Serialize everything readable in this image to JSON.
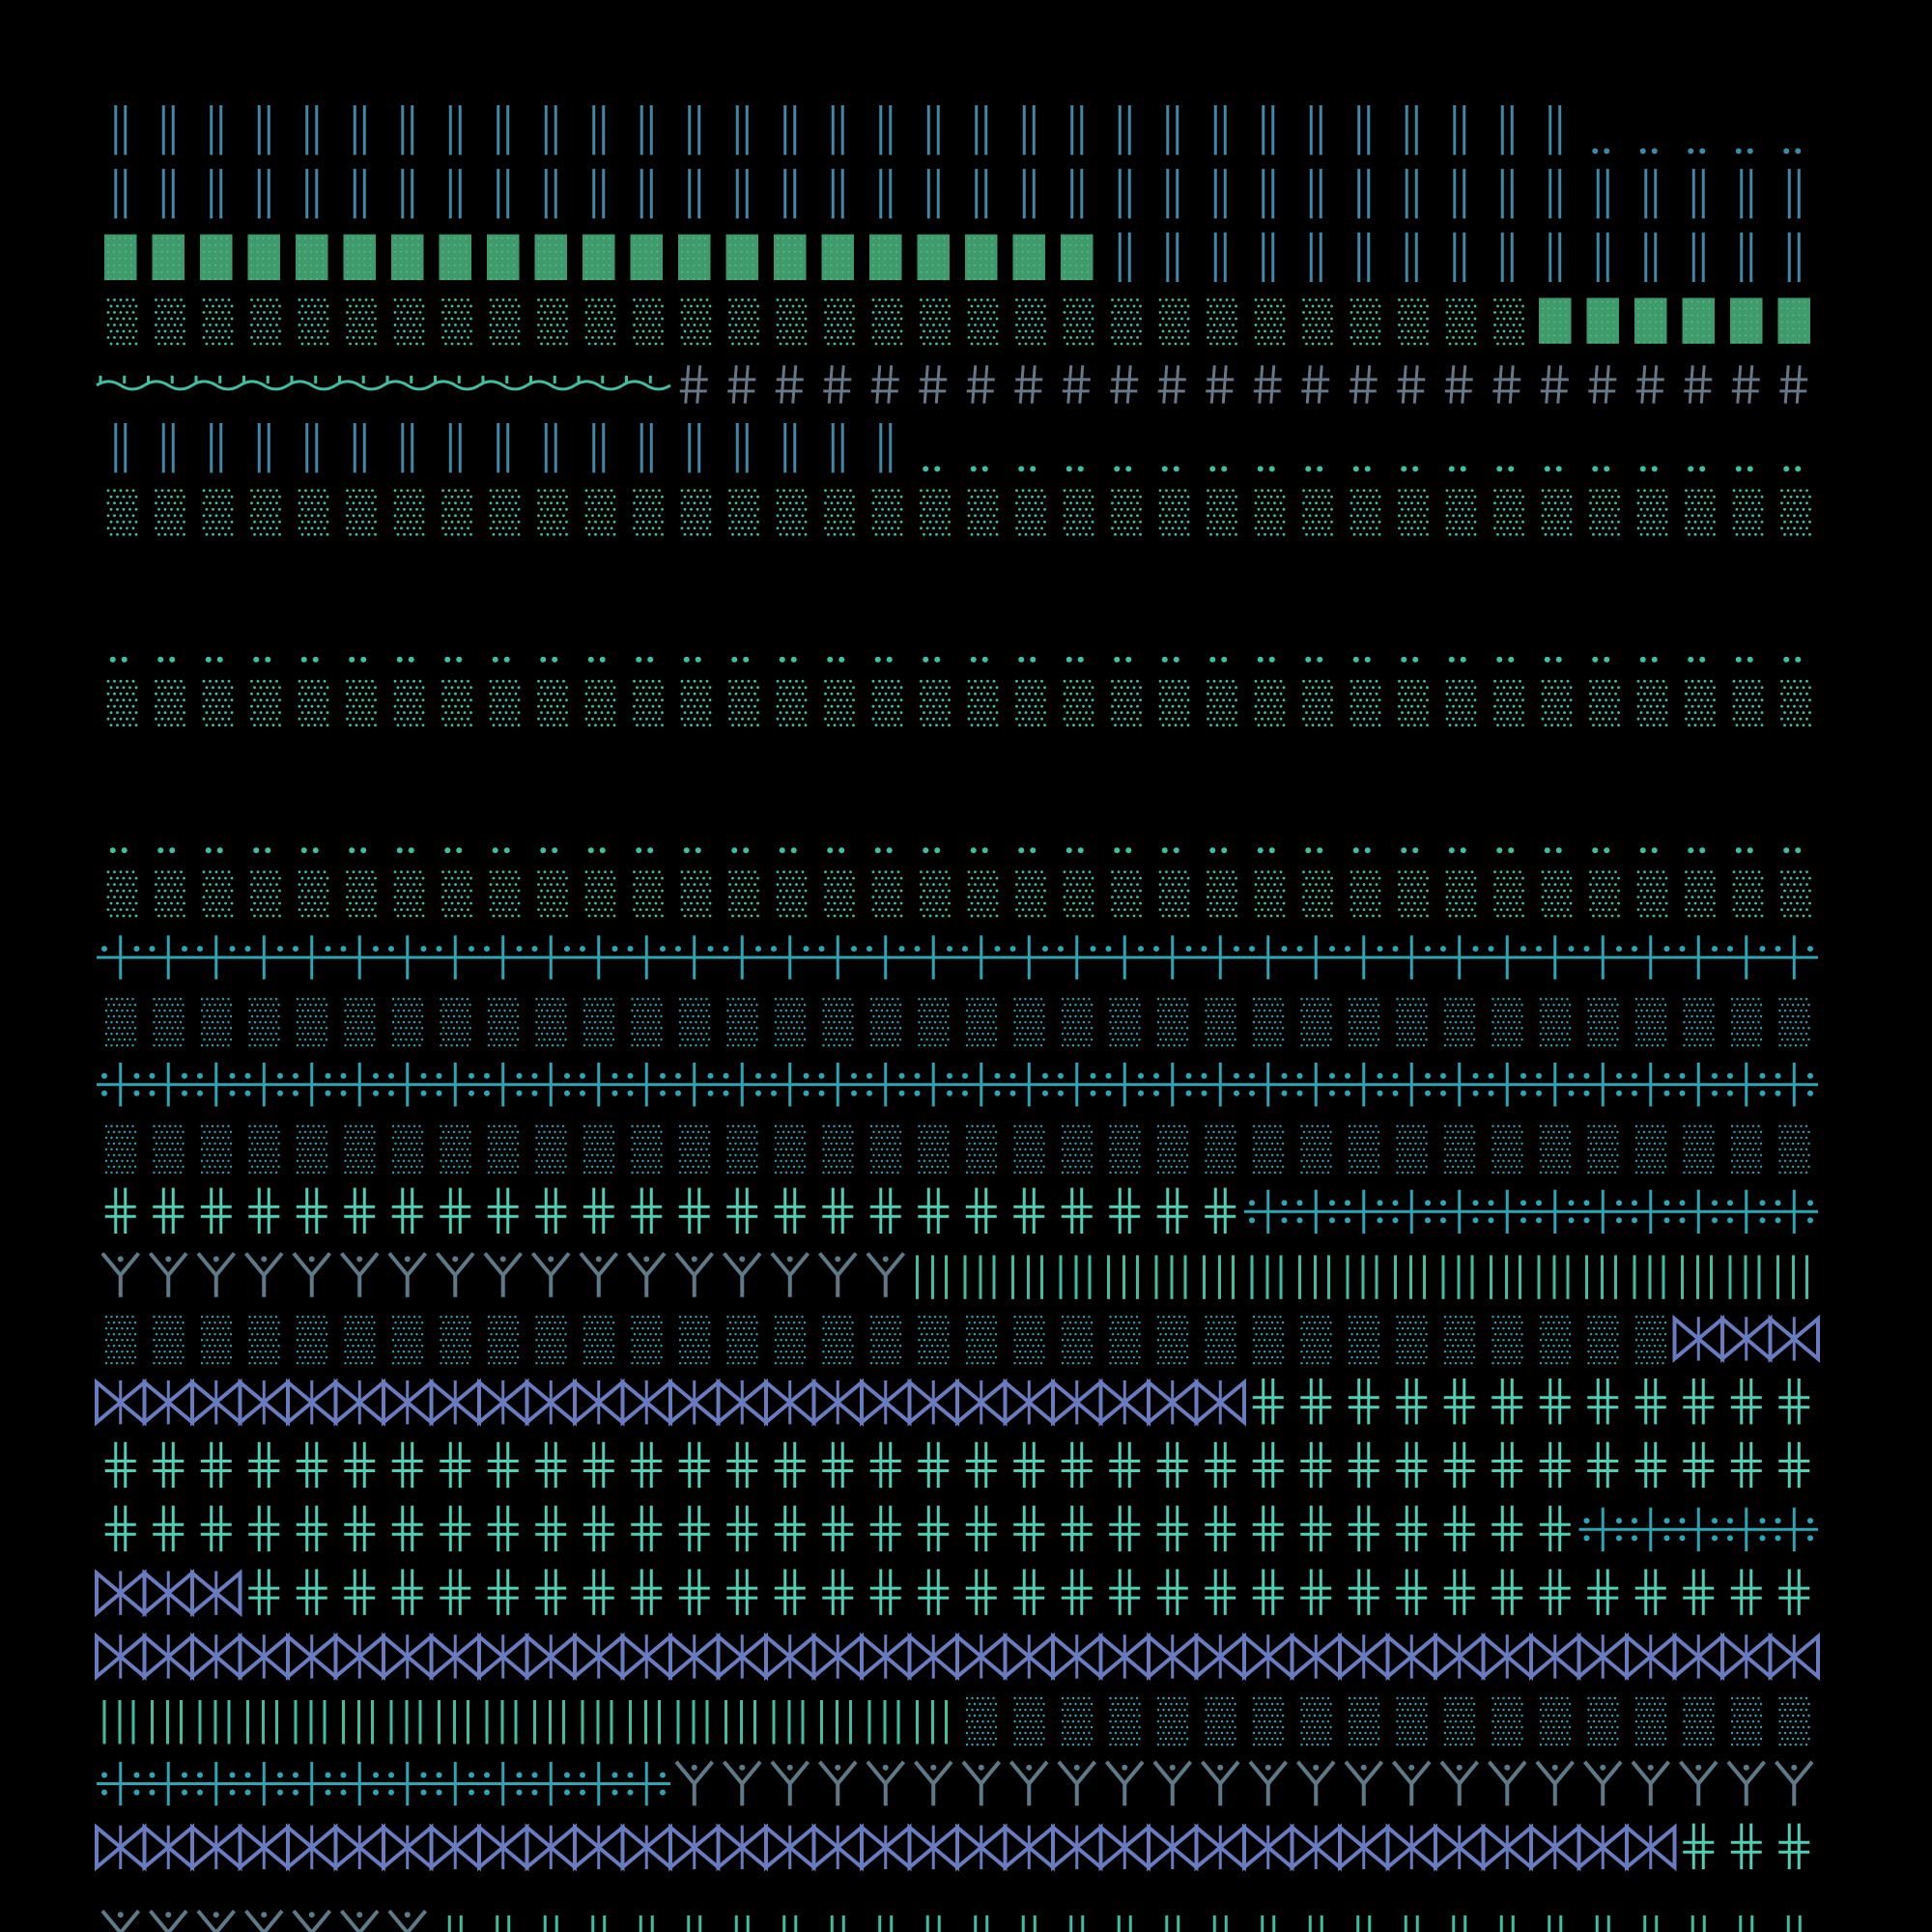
{
  "palette": {
    "background": "#000000",
    "steel_blue": "#3f88a8",
    "green": "#3f9a6c",
    "teal": "#3fbfa0",
    "aqua": "#4fd0b4",
    "cyan": "#2aa6b4",
    "slate": "#5e7a88",
    "grey": "#667788",
    "violet": "#6a7cc0",
    "sea": "#3fbf9f"
  },
  "pattern_rows": [
    {
      "segments": [
        {
          "motif": "double-bar",
          "color": "steel_blue",
          "count": 31
        },
        {
          "motif": "dots-pair",
          "color": "steel_blue",
          "count": 6
        }
      ]
    },
    {
      "segments": [
        {
          "motif": "double-bar",
          "color": "steel_blue",
          "count": 37
        }
      ]
    },
    {
      "segments": [
        {
          "motif": "solid-block",
          "color": "green",
          "count": 21
        },
        {
          "motif": "double-bar",
          "color": "steel_blue",
          "count": 16
        }
      ]
    },
    {
      "segments": [
        {
          "motif": "dot-grid",
          "color": "teal",
          "count": 30
        },
        {
          "motif": "solid-block",
          "color": "green",
          "count": 7
        }
      ]
    },
    {
      "segments": [
        {
          "motif": "tilde-wave",
          "color": "teal",
          "count": 12
        },
        {
          "motif": "hash",
          "color": "grey",
          "count": 25
        }
      ]
    },
    {
      "segments": [
        {
          "motif": "double-bar",
          "color": "steel_blue",
          "count": 17
        },
        {
          "motif": "dots-pair",
          "color": "teal",
          "count": 20
        }
      ]
    },
    {
      "segments": [
        {
          "motif": "dot-grid",
          "color": "teal",
          "count": 37
        }
      ]
    },
    {
      "segments": []
    },
    {
      "segments": [
        {
          "motif": "dots-pair",
          "color": "teal",
          "count": 37
        }
      ]
    },
    {
      "segments": [
        {
          "motif": "dot-grid",
          "color": "teal",
          "count": 37
        }
      ]
    },
    {
      "segments": []
    },
    {
      "segments": [
        {
          "motif": "dots-pair",
          "color": "teal",
          "count": 37
        }
      ]
    },
    {
      "segments": [
        {
          "motif": "dot-grid",
          "color": "teal",
          "count": 37
        }
      ]
    },
    {
      "segments": [
        {
          "motif": "cross-dot",
          "color": "cyan",
          "count": 37
        }
      ]
    },
    {
      "segments": [
        {
          "motif": "fine-grid",
          "color": "cyan",
          "count": 37
        }
      ]
    },
    {
      "segments": [
        {
          "motif": "cross-dot-full",
          "color": "cyan",
          "count": 37
        }
      ]
    },
    {
      "segments": [
        {
          "motif": "fine-grid",
          "color": "cyan",
          "count": 37
        }
      ]
    },
    {
      "segments": [
        {
          "motif": "double-cross",
          "color": "aqua",
          "count": 24
        },
        {
          "motif": "cross-dot-full",
          "color": "cyan",
          "count": 13
        }
      ]
    },
    {
      "segments": [
        {
          "motif": "fork",
          "color": "slate",
          "count": 17
        },
        {
          "motif": "bars-mixed",
          "color": "sea",
          "count": 20
        }
      ]
    },
    {
      "segments": [
        {
          "motif": "fine-grid",
          "color": "cyan",
          "count": 33
        },
        {
          "motif": "bowtie",
          "color": "violet",
          "count": 4
        }
      ]
    },
    {
      "segments": [
        {
          "motif": "bowtie",
          "color": "violet",
          "count": 24
        },
        {
          "motif": "double-cross",
          "color": "aqua",
          "count": 13
        }
      ]
    },
    {
      "segments": [
        {
          "motif": "double-cross",
          "color": "aqua",
          "count": 37
        }
      ]
    },
    {
      "segments": [
        {
          "motif": "double-cross",
          "color": "aqua",
          "count": 31
        },
        {
          "motif": "cross-dot-full",
          "color": "cyan",
          "count": 6
        }
      ]
    },
    {
      "segments": [
        {
          "motif": "bowtie",
          "color": "violet",
          "count": 3
        },
        {
          "motif": "double-cross",
          "color": "aqua",
          "count": 34
        }
      ]
    },
    {
      "segments": [
        {
          "motif": "bowtie",
          "color": "violet",
          "count": 37
        }
      ]
    },
    {
      "segments": [
        {
          "motif": "bars-mixed",
          "color": "sea",
          "count": 18
        },
        {
          "motif": "fine-grid",
          "color": "cyan",
          "count": 19
        }
      ]
    },
    {
      "segments": [
        {
          "motif": "cross-dot-full",
          "color": "cyan",
          "count": 12
        },
        {
          "motif": "fork",
          "color": "slate",
          "count": 25
        }
      ]
    },
    {
      "segments": [
        {
          "motif": "bowtie",
          "color": "violet",
          "count": 33
        },
        {
          "motif": "double-cross",
          "color": "aqua",
          "count": 4
        }
      ]
    },
    {
      "segments": [
        {
          "motif": "vee-small",
          "color": "slate",
          "count": 7
        },
        {
          "motif": "ticks-small",
          "color": "sea",
          "count": 30
        }
      ]
    }
  ]
}
